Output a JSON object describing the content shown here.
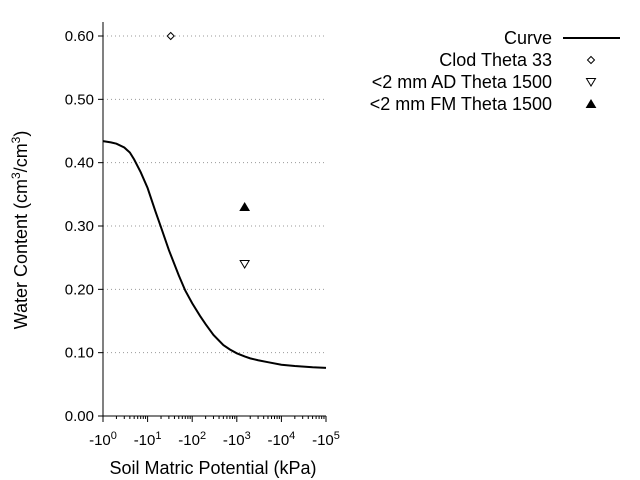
{
  "chart_data": {
    "type": "line",
    "title": "",
    "xlabel": "Soil Matric Potential (kPa)",
    "ylabel_main": "Water Content (cm",
    "ylabel_sup1": "3",
    "ylabel_mid": "/cm",
    "ylabel_sup2": "3",
    "ylabel_end": ")",
    "x_scale": "log",
    "x_range_exponent": [
      0,
      5
    ],
    "ylim": [
      0,
      0.6
    ],
    "grid": "horizontal dotted",
    "legend_position": "top-right",
    "x_ticks": [
      {
        "base": "-10",
        "exp": "0"
      },
      {
        "base": "-10",
        "exp": "1"
      },
      {
        "base": "-10",
        "exp": "2"
      },
      {
        "base": "-10",
        "exp": "3"
      },
      {
        "base": "-10",
        "exp": "4"
      },
      {
        "base": "-10",
        "exp": "5"
      }
    ],
    "y_ticks": [
      "0.00",
      "0.10",
      "0.20",
      "0.30",
      "0.40",
      "0.50",
      "0.60"
    ],
    "series": [
      {
        "name": "Curve",
        "kind": "line",
        "color": "#000000",
        "points": [
          [
            1,
            0.434
          ],
          [
            1.5,
            0.432
          ],
          [
            2,
            0.43
          ],
          [
            3,
            0.424
          ],
          [
            4,
            0.416
          ],
          [
            5,
            0.405
          ],
          [
            7,
            0.385
          ],
          [
            10,
            0.36
          ],
          [
            15,
            0.323
          ],
          [
            20,
            0.298
          ],
          [
            30,
            0.262
          ],
          [
            50,
            0.222
          ],
          [
            70,
            0.198
          ],
          [
            100,
            0.178
          ],
          [
            150,
            0.158
          ],
          [
            200,
            0.145
          ],
          [
            300,
            0.128
          ],
          [
            500,
            0.112
          ],
          [
            700,
            0.105
          ],
          [
            1000,
            0.099
          ],
          [
            1500,
            0.094
          ],
          [
            2000,
            0.091
          ],
          [
            3000,
            0.088
          ],
          [
            5000,
            0.085
          ],
          [
            10000,
            0.081
          ],
          [
            20000,
            0.079
          ],
          [
            50000,
            0.077
          ],
          [
            100000,
            0.076
          ]
        ]
      },
      {
        "name": "Clod Theta 33",
        "kind": "marker",
        "marker": "diamond-open",
        "points": [
          [
            33,
            0.6
          ]
        ]
      },
      {
        "name": "<2 mm AD Theta 1500",
        "kind": "marker",
        "marker": "triangle-down-open",
        "points": [
          [
            1500,
            0.24
          ]
        ]
      },
      {
        "name": "<2 mm FM Theta 1500",
        "kind": "marker",
        "marker": "triangle-up-filled",
        "points": [
          [
            1500,
            0.33
          ]
        ]
      }
    ]
  }
}
